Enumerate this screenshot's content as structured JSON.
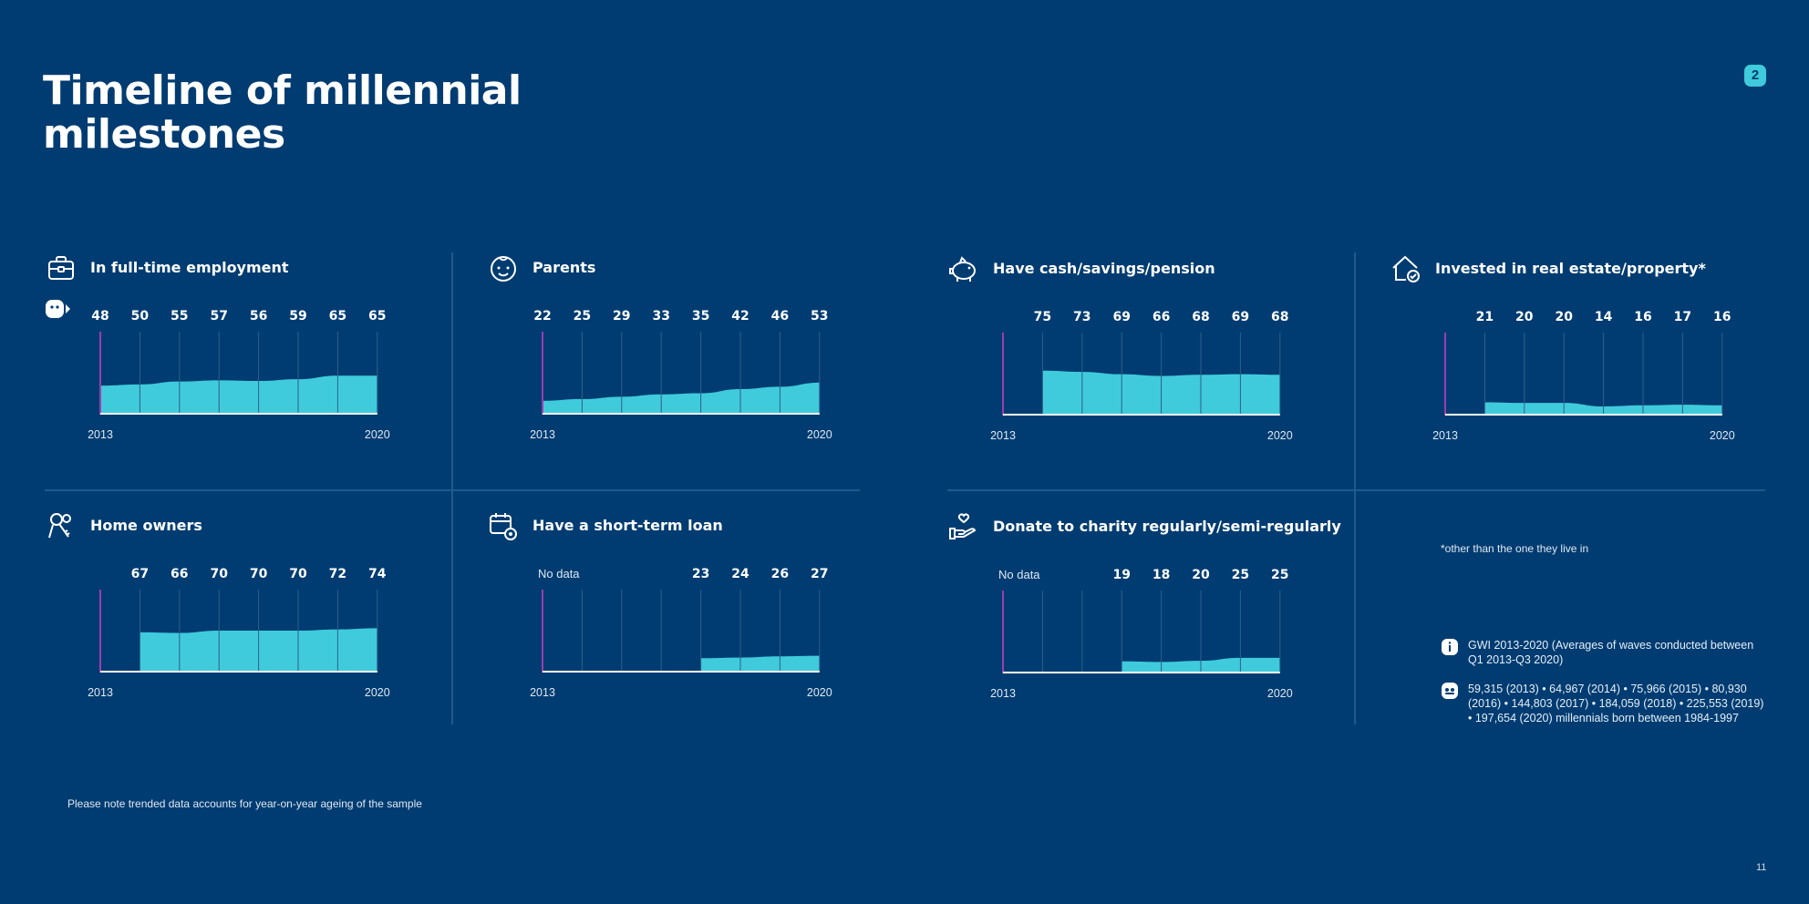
{
  "page": {
    "title": "Timeline of millennial milestones",
    "badge": "2",
    "footnote": "Please note trended data accounts for year-on-year ageing of the sample",
    "asterisk_note": "*other than the one they live in",
    "source": "GWI 2013-2020 (Averages of waves conducted between Q1 2013-Q3 2020)",
    "sample": "59,315 (2013) • 64,967 (2014) • 75,966 (2015) • 80,930 (2016) • 144,803 (2017) • 184,059 (2018) • 225,553 (2019) • 197,654 (2020) millennials born between 1984-1997",
    "page_number": "11"
  },
  "colors": {
    "background": "#003c71",
    "area_fill": "#3fcbdc",
    "grid_line": "#2e5f8c",
    "start_line": "#9b3db0",
    "baseline": "#ffffff"
  },
  "chart_data": [
    {
      "id": "employment",
      "type": "area",
      "icon": "briefcase-icon",
      "title": "In full-time employment",
      "x": [
        2013,
        2014,
        2015,
        2016,
        2017,
        2018,
        2019,
        2020
      ],
      "values": [
        48,
        50,
        55,
        57,
        56,
        59,
        65,
        65
      ],
      "value_labels": [
        "48",
        "50",
        "55",
        "57",
        "56",
        "59",
        "65",
        "65"
      ],
      "no_data_label": "",
      "x_start_label": "2013",
      "x_end_label": "2020",
      "ylim": [
        0,
        140
      ],
      "show_sample_icon": true
    },
    {
      "id": "parents",
      "type": "area",
      "icon": "baby-face-icon",
      "title": "Parents",
      "x": [
        2013,
        2014,
        2015,
        2016,
        2017,
        2018,
        2019,
        2020
      ],
      "values": [
        22,
        25,
        29,
        33,
        35,
        42,
        46,
        53
      ],
      "value_labels": [
        "22",
        "25",
        "29",
        "33",
        "35",
        "42",
        "46",
        "53"
      ],
      "no_data_label": "",
      "x_start_label": "2013",
      "x_end_label": "2020",
      "ylim": [
        0,
        140
      ],
      "show_sample_icon": false
    },
    {
      "id": "savings",
      "type": "area",
      "icon": "piggy-bank-icon",
      "title": "Have cash/savings/pension",
      "x": [
        2013,
        2014,
        2015,
        2016,
        2017,
        2018,
        2019,
        2020
      ],
      "values": [
        null,
        75,
        73,
        69,
        66,
        68,
        69,
        68
      ],
      "value_labels": [
        "",
        "75",
        "73",
        "69",
        "66",
        "68",
        "69",
        "68"
      ],
      "no_data_label": "",
      "x_start_label": "2013",
      "x_end_label": "2020",
      "ylim": [
        0,
        140
      ],
      "show_sample_icon": false
    },
    {
      "id": "real_estate",
      "type": "area",
      "icon": "house-check-icon",
      "title": "Invested in real estate/property*",
      "x": [
        2013,
        2014,
        2015,
        2016,
        2017,
        2018,
        2019,
        2020
      ],
      "values": [
        null,
        21,
        20,
        20,
        14,
        16,
        17,
        16
      ],
      "value_labels": [
        "",
        "21",
        "20",
        "20",
        "14",
        "16",
        "17",
        "16"
      ],
      "no_data_label": "",
      "x_start_label": "2013",
      "x_end_label": "2020",
      "ylim": [
        0,
        140
      ],
      "show_sample_icon": false
    },
    {
      "id": "home_owners",
      "type": "area",
      "icon": "keys-icon",
      "title": "Home owners",
      "x": [
        2013,
        2014,
        2015,
        2016,
        2017,
        2018,
        2019,
        2020
      ],
      "values": [
        null,
        67,
        66,
        70,
        70,
        70,
        72,
        74
      ],
      "value_labels": [
        "",
        "67",
        "66",
        "70",
        "70",
        "70",
        "72",
        "74"
      ],
      "no_data_label": "",
      "x_start_label": "2013",
      "x_end_label": "2020",
      "ylim": [
        0,
        140
      ],
      "show_sample_icon": false
    },
    {
      "id": "loan",
      "type": "area",
      "icon": "calendar-coin-icon",
      "title": "Have a short-term loan",
      "x": [
        2013,
        2014,
        2015,
        2016,
        2017,
        2018,
        2019,
        2020
      ],
      "values": [
        null,
        null,
        null,
        null,
        23,
        24,
        26,
        27
      ],
      "value_labels": [
        "",
        "",
        "",
        "",
        "23",
        "24",
        "26",
        "27"
      ],
      "no_data_label": "No data",
      "x_start_label": "2013",
      "x_end_label": "2020",
      "ylim": [
        0,
        140
      ],
      "show_sample_icon": false
    },
    {
      "id": "charity",
      "type": "area",
      "icon": "hand-heart-icon",
      "title": "Donate to charity regularly/semi-regularly",
      "x": [
        2013,
        2014,
        2015,
        2016,
        2017,
        2018,
        2019,
        2020
      ],
      "values": [
        null,
        null,
        null,
        19,
        18,
        20,
        25,
        25
      ],
      "value_labels": [
        "",
        "",
        "",
        "19",
        "18",
        "20",
        "25",
        "25"
      ],
      "no_data_label": "No data",
      "x_start_label": "2013",
      "x_end_label": "2020",
      "ylim": [
        0,
        140
      ],
      "show_sample_icon": false
    }
  ]
}
